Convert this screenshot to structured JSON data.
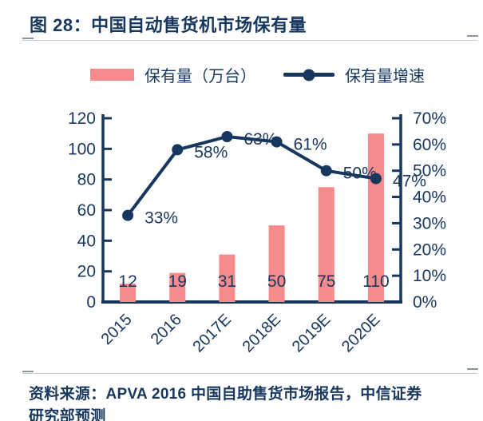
{
  "title": "图 28：中国自动售货机市场保有量",
  "legend": {
    "bar_label": "保有量（万台）",
    "line_label": "保有量增速"
  },
  "source": {
    "line1": "资料来源：APVA 2016 中国自助售货市场报告，中信证券",
    "line2": "研究部预测"
  },
  "colors": {
    "bar": "#f78b8b",
    "line": "#17375e",
    "text": "#17375e",
    "axis": "#17375e",
    "rule": "#c6cad1"
  },
  "chart_data": {
    "type": "bar",
    "subtype": "bar-line-combo",
    "title": "中国自动售货机市场保有量",
    "categories": [
      "2015",
      "2016",
      "2017E",
      "2018E",
      "2019E",
      "2020E"
    ],
    "series": [
      {
        "name": "保有量（万台）",
        "type": "bar",
        "axis": "left",
        "values": [
          12,
          19,
          31,
          50,
          75,
          110
        ],
        "value_labels": [
          "12",
          "19",
          "31",
          "50",
          "75",
          "110"
        ],
        "color": "#f78b8b"
      },
      {
        "name": "保有量增速",
        "type": "line",
        "axis": "right",
        "values": [
          33,
          58,
          63,
          61,
          50,
          47
        ],
        "value_labels": [
          "33%",
          "58%",
          "63%",
          "61%",
          "50%",
          "47%"
        ],
        "color": "#17375e"
      }
    ],
    "left_axis": {
      "min": 0,
      "max": 120,
      "step": 20,
      "tick_labels": [
        "0",
        "20",
        "40",
        "60",
        "80",
        "100",
        "120"
      ]
    },
    "right_axis": {
      "min": 0,
      "max": 70,
      "step": 10,
      "tick_labels": [
        "0%",
        "10%",
        "20%",
        "30%",
        "40%",
        "50%",
        "60%",
        "70%"
      ]
    },
    "grid": false,
    "legend_position": "top"
  }
}
